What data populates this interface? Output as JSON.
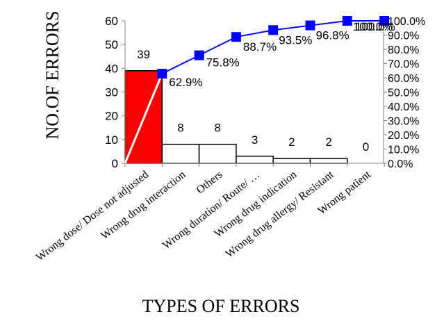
{
  "chart_data": {
    "type": "bar",
    "title": "",
    "xlabel": "TYPES OF ERRORS",
    "ylabel": "NO.OF ERRORS",
    "ylim": [
      0,
      60
    ],
    "y_ticks": [
      "0",
      "10",
      "20",
      "30",
      "40",
      "50",
      "60"
    ],
    "y2lim": [
      0,
      100
    ],
    "y2_ticks": [
      "0.0%",
      "10.0%",
      "20.0%",
      "30.0%",
      "40.0%",
      "50.0%",
      "60.0%",
      "70.0%",
      "80.0%",
      "90.0%",
      "100.0%"
    ],
    "grid": false,
    "categories": [
      "Wrong dose/ Dose not adjusted",
      "Wrong drug interaction",
      "Others",
      "Wrong duration/ Route/ …",
      "Wrong drug indication",
      "Wrong drug allergy/ Resistant",
      "Wrong patient"
    ],
    "series": [
      {
        "type": "bar",
        "values": [
          39,
          8,
          8,
          3,
          2,
          2,
          0
        ],
        "labels": [
          "39",
          "8",
          "8",
          "3",
          "2",
          "2",
          "0"
        ],
        "colors": [
          "#ff0000",
          "#ffffff",
          "#ffffff",
          "#ffffff",
          "#ffffff",
          "#ffffff",
          "#ffffff"
        ]
      },
      {
        "type": "line",
        "axis": "secondary",
        "values": [
          62.9,
          75.8,
          88.7,
          93.5,
          96.8,
          100,
          100
        ],
        "labels": [
          "62.9%",
          "75.8%",
          "88.7%",
          "93.5%",
          "96.8%",
          "100.0%",
          "100.0%"
        ],
        "color": "#0000ff"
      }
    ]
  }
}
